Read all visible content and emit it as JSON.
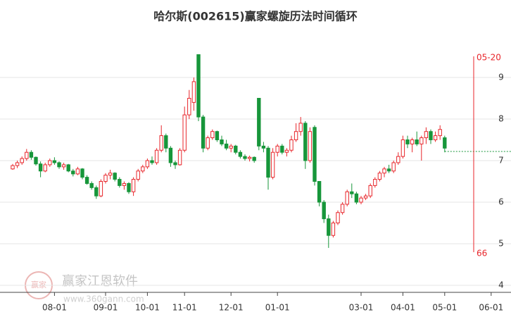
{
  "chart_data": {
    "type": "candlestick",
    "title": "哈尔斯(002615)赢家螺旋历法时间循环",
    "categories": [
      null,
      null,
      null,
      null,
      null,
      null,
      null,
      null,
      null,
      "08-01",
      null,
      null,
      null,
      null,
      null,
      null,
      null,
      null,
      null,
      null,
      "09-01",
      null,
      null,
      null,
      null,
      null,
      null,
      null,
      null,
      "10-01",
      null,
      null,
      null,
      null,
      null,
      null,
      null,
      "11-01",
      null,
      null,
      null,
      null,
      null,
      null,
      null,
      null,
      null,
      "12-01",
      null,
      null,
      null,
      null,
      null,
      null,
      null,
      null,
      null,
      "01-01",
      null,
      null,
      null,
      null,
      null,
      null,
      null,
      null,
      null,
      null,
      null,
      null,
      null,
      null,
      null,
      null,
      null,
      "03-01",
      null,
      null,
      null,
      null,
      null,
      null,
      null,
      null,
      "04-01",
      null,
      null,
      null,
      null,
      null,
      null,
      null,
      null,
      "05-01",
      null,
      null,
      null,
      null,
      null,
      null,
      null,
      null,
      null,
      "06-01",
      null,
      null
    ],
    "series": [
      {
        "up_color": "#e8262b",
        "down_color": "#17963a",
        "open": [
          6.8,
          6.88,
          6.95,
          7.05,
          7.2,
          7.08,
          6.92,
          6.75,
          6.9,
          7.0,
          6.95,
          6.85,
          6.9,
          6.75,
          6.68,
          6.8,
          6.6,
          6.45,
          6.35,
          6.15,
          6.5,
          6.65,
          6.7,
          6.55,
          6.4,
          6.45,
          6.25,
          6.55,
          6.75,
          6.85,
          7.0,
          6.95,
          7.25,
          7.6,
          7.3,
          6.95,
          6.9,
          7.25,
          8.1,
          8.4,
          9.55,
          8.05,
          7.3,
          7.55,
          7.7,
          7.5,
          7.4,
          7.3,
          7.35,
          7.2,
          7.1,
          7.05,
          7.08,
          8.5,
          7.35,
          7.3,
          6.6,
          7.2,
          7.35,
          7.2,
          7.25,
          7.5,
          7.7,
          7.9,
          7.0,
          7.8,
          6.5,
          6.0,
          5.6,
          5.2,
          5.5,
          5.75,
          5.95,
          6.25,
          6.2,
          6.0,
          6.1,
          6.15,
          6.4,
          6.55,
          6.7,
          6.8,
          6.75,
          6.95,
          7.1,
          7.5,
          7.4,
          7.5,
          7.4,
          7.55,
          7.7,
          7.5,
          7.6,
          7.55,
          null,
          null,
          null,
          null,
          null,
          null,
          null,
          null,
          null,
          null,
          null,
          null
        ],
        "high": [
          6.92,
          7.0,
          7.1,
          7.28,
          7.25,
          7.1,
          6.98,
          6.95,
          7.05,
          7.08,
          6.98,
          6.95,
          6.92,
          6.8,
          6.85,
          6.82,
          6.65,
          6.5,
          6.4,
          6.55,
          6.7,
          6.78,
          6.72,
          6.6,
          6.5,
          6.48,
          6.6,
          6.8,
          6.9,
          7.05,
          7.1,
          7.3,
          7.85,
          7.65,
          7.35,
          7.0,
          7.3,
          8.3,
          8.7,
          9.0,
          9.55,
          8.1,
          7.6,
          7.75,
          7.72,
          7.6,
          7.5,
          7.4,
          7.38,
          7.25,
          7.15,
          7.12,
          7.1,
          8.5,
          7.45,
          7.35,
          7.3,
          7.4,
          7.4,
          7.3,
          7.6,
          7.9,
          8.05,
          7.95,
          7.8,
          7.85,
          6.5,
          6.05,
          5.7,
          5.55,
          5.8,
          6.0,
          6.3,
          6.45,
          6.25,
          6.15,
          6.2,
          6.45,
          6.6,
          6.75,
          6.85,
          6.9,
          7.0,
          7.2,
          7.6,
          7.6,
          7.55,
          7.7,
          7.6,
          7.8,
          7.75,
          7.7,
          7.85,
          7.6,
          null,
          null,
          null,
          null,
          null,
          null,
          null,
          null,
          null,
          null,
          null,
          null
        ],
        "low": [
          6.78,
          6.82,
          6.9,
          7.0,
          7.02,
          6.88,
          6.6,
          6.72,
          6.85,
          6.9,
          6.8,
          6.78,
          6.72,
          6.62,
          6.65,
          6.55,
          6.42,
          6.3,
          6.08,
          6.12,
          6.45,
          6.55,
          6.5,
          6.35,
          6.3,
          6.2,
          6.15,
          6.5,
          6.7,
          6.8,
          6.9,
          6.9,
          7.2,
          7.2,
          6.85,
          6.8,
          6.88,
          7.2,
          8.0,
          8.2,
          7.95,
          7.2,
          7.25,
          7.5,
          7.45,
          7.35,
          7.25,
          7.2,
          7.15,
          7.05,
          7.0,
          6.98,
          6.95,
          7.25,
          7.2,
          6.3,
          6.55,
          7.1,
          7.15,
          7.1,
          7.2,
          7.45,
          7.6,
          6.8,
          6.95,
          6.4,
          5.9,
          5.5,
          4.9,
          5.15,
          5.45,
          5.7,
          5.9,
          6.1,
          5.95,
          5.95,
          6.05,
          6.1,
          6.35,
          6.5,
          6.6,
          6.7,
          6.7,
          6.9,
          7.05,
          7.3,
          7.2,
          7.35,
          7.0,
          7.4,
          7.4,
          7.45,
          7.5,
          7.2,
          null,
          null,
          null,
          null,
          null,
          null,
          null,
          null,
          null,
          null,
          null,
          null
        ],
        "close": [
          6.88,
          6.95,
          7.05,
          7.2,
          7.08,
          6.92,
          6.75,
          6.9,
          7.0,
          6.95,
          6.85,
          6.9,
          6.75,
          6.68,
          6.8,
          6.6,
          6.45,
          6.35,
          6.15,
          6.5,
          6.65,
          6.7,
          6.55,
          6.4,
          6.45,
          6.25,
          6.55,
          6.75,
          6.85,
          7.0,
          6.95,
          7.25,
          7.6,
          7.3,
          6.95,
          6.9,
          7.25,
          8.1,
          8.5,
          8.9,
          8.05,
          7.3,
          7.55,
          7.7,
          7.5,
          7.4,
          7.3,
          7.35,
          7.2,
          7.1,
          7.05,
          7.08,
          7.0,
          7.35,
          7.3,
          6.6,
          7.2,
          7.35,
          7.2,
          7.25,
          7.5,
          7.7,
          7.9,
          7.0,
          7.7,
          6.5,
          6.0,
          5.6,
          5.2,
          5.5,
          5.75,
          5.95,
          6.25,
          6.2,
          6.0,
          6.1,
          6.15,
          6.4,
          6.55,
          6.7,
          6.8,
          6.75,
          6.95,
          7.1,
          7.5,
          7.4,
          7.5,
          7.4,
          7.55,
          7.7,
          7.5,
          7.6,
          7.75,
          7.3,
          null,
          null,
          null,
          null,
          null,
          null,
          null,
          null,
          null,
          null,
          null,
          null
        ]
      }
    ],
    "ylim": [
      4,
      10
    ],
    "yticks": [
      4,
      5,
      6,
      7,
      8,
      9
    ],
    "grid": true,
    "reference_line": {
      "value": 7.22,
      "color": "#17963a"
    },
    "cycle_line": {
      "color": "#e8262b",
      "date_label": "05-20",
      "count_label": "66"
    },
    "watermark": {
      "brand": "赢家江恩软件",
      "url": "www.360gann.com",
      "logo": "赢家"
    }
  }
}
